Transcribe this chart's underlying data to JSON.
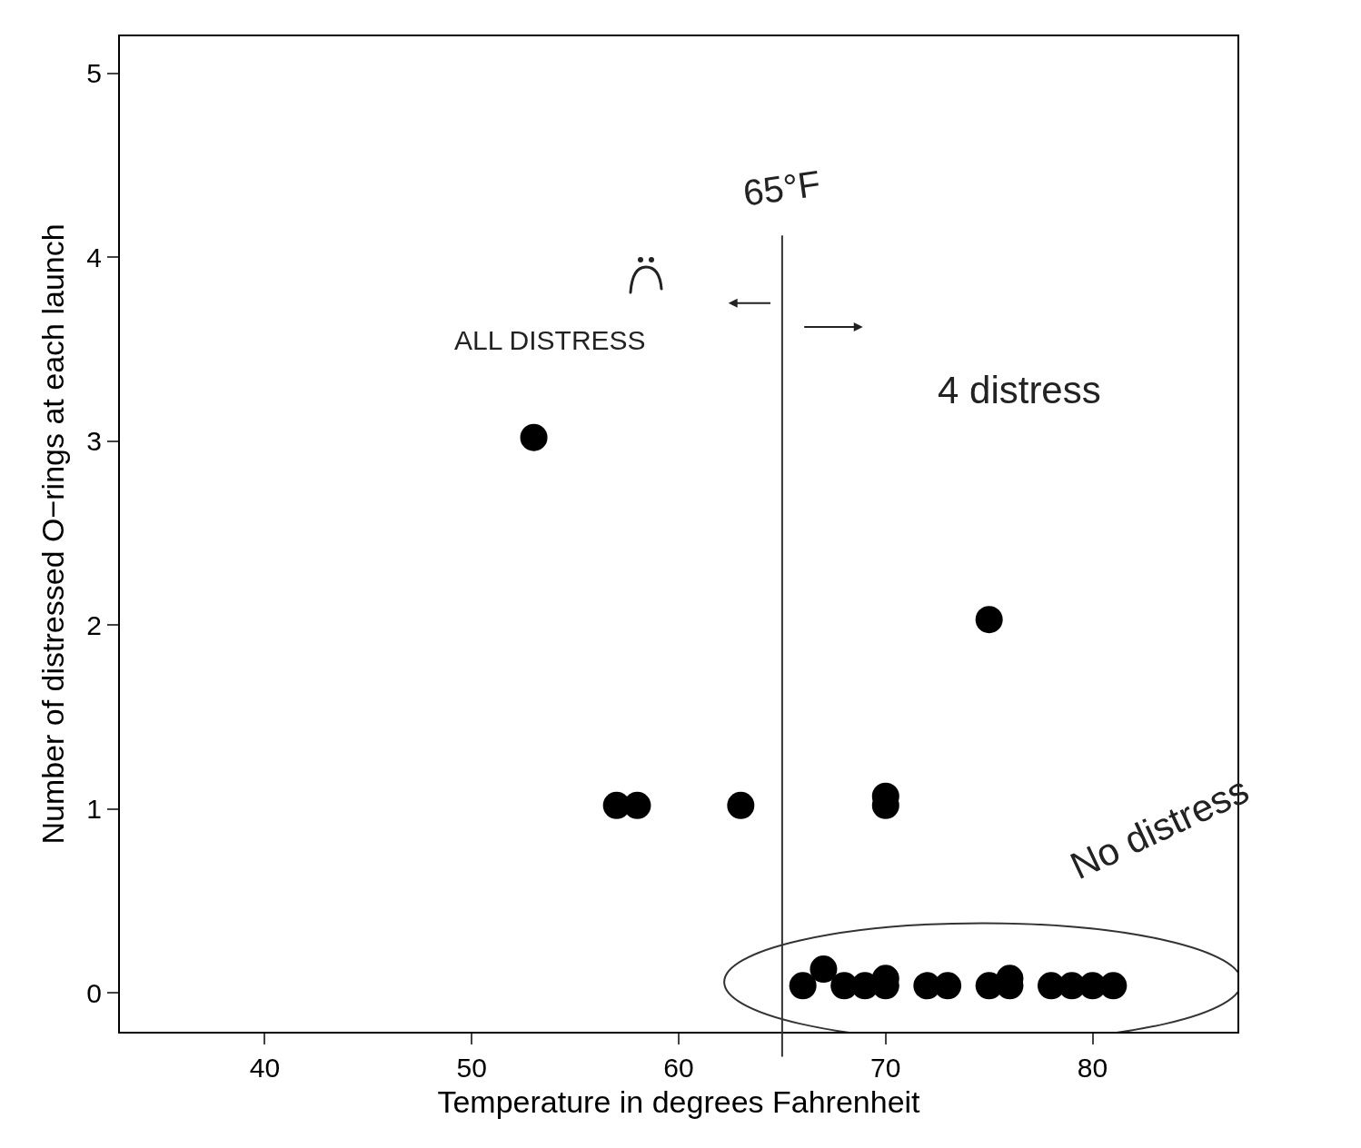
{
  "chart_data": {
    "type": "scatter",
    "xlabel": "Temperature in degrees Fahrenheit",
    "ylabel": "Number of distressed O−rings at each launch",
    "x": [
      53,
      57,
      58,
      63,
      70,
      70,
      75,
      66,
      67,
      68,
      69,
      70,
      70,
      72,
      73,
      75,
      76,
      76,
      78,
      79,
      80,
      81
    ],
    "series": [
      {
        "color": "#000000",
        "values": [
          3.02,
          1.02,
          1.02,
          1.02,
          1.07,
          1.02,
          2.03,
          0.04,
          0.13,
          0.04,
          0.04,
          0.08,
          0.04,
          0.04,
          0.04,
          0.04,
          0.08,
          0.04,
          0.04,
          0.04,
          0.04,
          0.04
        ]
      }
    ],
    "xlim": [
      33,
      87
    ],
    "xticks": [
      40,
      50,
      60,
      70,
      80
    ],
    "ylim": [
      -0.21,
      5.2
    ],
    "yticks": [
      0,
      1,
      2,
      3,
      4,
      5
    ],
    "marker": "circle",
    "grid": false,
    "ref_lines": [
      {
        "axis": "x",
        "value": 65,
        "label": "65°F",
        "color": "#333333",
        "line_style": "solid"
      }
    ],
    "annotations": [
      "ALL DISTRESS",
      "4 distress",
      "No distress"
    ]
  }
}
